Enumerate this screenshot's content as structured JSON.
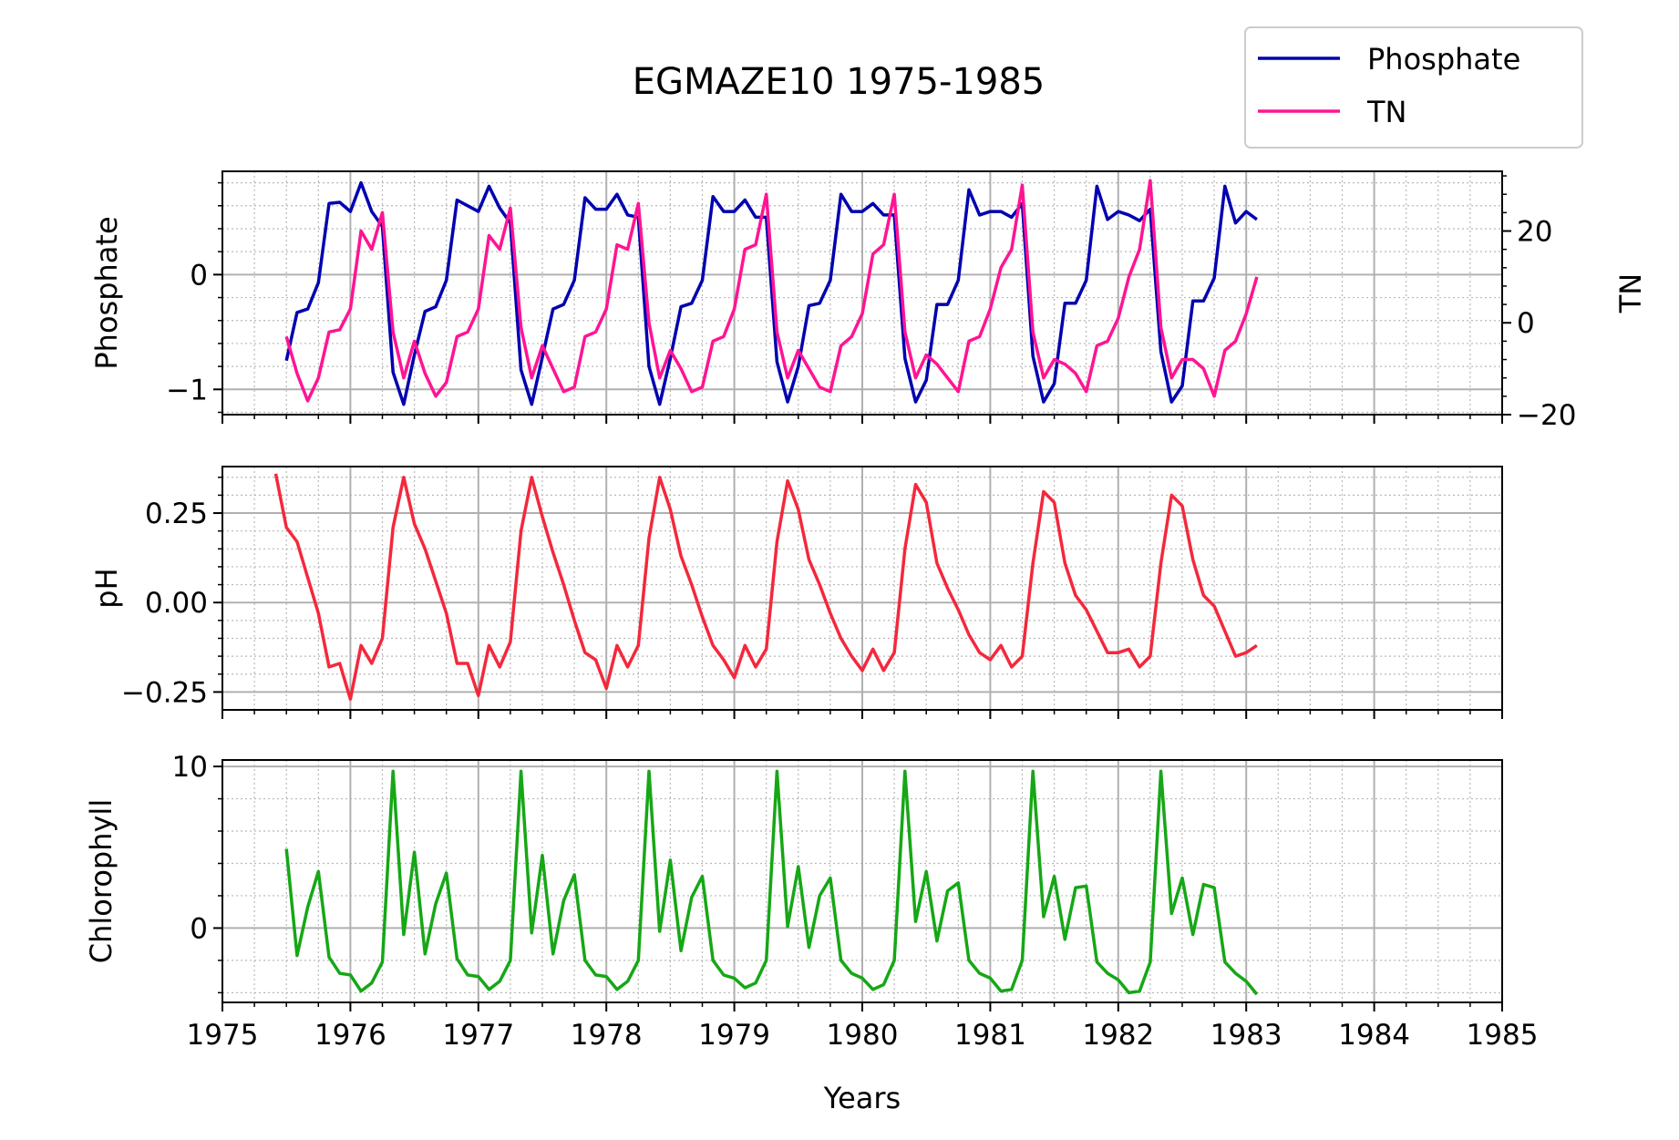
{
  "chart_data": {
    "type": "line",
    "title": "EGMAZE10 1975-1985",
    "xlabel": "Years",
    "xlim": [
      1975,
      1985
    ],
    "x_ticks": [
      "1975",
      "1976",
      "1977",
      "1978",
      "1979",
      "1980",
      "1981",
      "1982",
      "1983",
      "1984",
      "1985"
    ],
    "x_major_step": 1,
    "x_minor_step": 0.25,
    "legend": {
      "placement": "upper-right",
      "entries": [
        {
          "label": "Phosphate",
          "color": "#0000b0"
        },
        {
          "label": "TN",
          "color": "#ff1493"
        }
      ]
    },
    "panels": [
      {
        "name": "phosphate-tn",
        "ylabel": "Phosphate",
        "ylim": [
          -1.22,
          0.9
        ],
        "y_ticks": [
          {
            "value": -1,
            "label": "−1"
          },
          {
            "value": 0,
            "label": "0"
          }
        ],
        "y_minor_step": 0.2,
        "y2label": "TN",
        "y2lim": [
          -20,
          33
        ],
        "y2_ticks": [
          {
            "value": -20,
            "label": "−20"
          },
          {
            "value": 0,
            "label": "0"
          },
          {
            "value": 20,
            "label": "20"
          }
        ],
        "y2_minor_step": 4,
        "series": [
          {
            "name": "Phosphate",
            "axis": "left",
            "color": "#0000b0",
            "x": [
              1975.5,
              1975.583,
              1975.667,
              1975.75,
              1975.833,
              1975.917,
              1976.0,
              1976.083,
              1976.167,
              1976.25,
              1976.333,
              1976.417,
              1976.5,
              1976.583,
              1976.667,
              1976.75,
              1976.833,
              1976.917,
              1977.0,
              1977.083,
              1977.167,
              1977.25,
              1977.333,
              1977.417,
              1977.5,
              1977.583,
              1977.667,
              1977.75,
              1977.833,
              1977.917,
              1978.0,
              1978.083,
              1978.167,
              1978.25,
              1978.333,
              1978.417,
              1978.5,
              1978.583,
              1978.667,
              1978.75,
              1978.833,
              1978.917,
              1979.0,
              1979.083,
              1979.167,
              1979.25,
              1979.333,
              1979.417,
              1979.5,
              1979.583,
              1979.667,
              1979.75,
              1979.833,
              1979.917,
              1980.0,
              1980.083,
              1980.167,
              1980.25,
              1980.333,
              1980.417,
              1980.5,
              1980.583,
              1980.667,
              1980.75,
              1980.833,
              1980.917,
              1981.0,
              1981.083,
              1981.167,
              1981.25,
              1981.333,
              1981.417,
              1981.5,
              1981.583,
              1981.667,
              1981.75,
              1981.833,
              1981.917,
              1982.0,
              1982.083,
              1982.167,
              1982.25,
              1982.333,
              1982.417,
              1982.5,
              1982.583,
              1982.667,
              1982.75,
              1982.833,
              1982.917,
              1983.0,
              1983.083
            ],
            "values": [
              -0.75,
              -0.33,
              -0.3,
              -0.07,
              0.62,
              0.63,
              0.55,
              0.8,
              0.55,
              0.42,
              -0.85,
              -1.13,
              -0.7,
              -0.32,
              -0.28,
              -0.05,
              0.65,
              0.6,
              0.55,
              0.77,
              0.58,
              0.45,
              -0.83,
              -1.13,
              -0.72,
              -0.3,
              -0.26,
              -0.05,
              0.67,
              0.57,
              0.57,
              0.7,
              0.52,
              0.5,
              -0.8,
              -1.13,
              -0.73,
              -0.28,
              -0.25,
              -0.05,
              0.68,
              0.55,
              0.55,
              0.65,
              0.5,
              0.5,
              -0.76,
              -1.11,
              -0.8,
              -0.27,
              -0.25,
              -0.05,
              0.7,
              0.55,
              0.55,
              0.62,
              0.52,
              0.52,
              -0.73,
              -1.11,
              -0.92,
              -0.26,
              -0.26,
              -0.05,
              0.74,
              0.52,
              0.55,
              0.55,
              0.5,
              0.62,
              -0.71,
              -1.11,
              -0.95,
              -0.25,
              -0.25,
              -0.05,
              0.77,
              0.48,
              0.55,
              0.52,
              0.47,
              0.57,
              -0.67,
              -1.11,
              -0.97,
              -0.23,
              -0.23,
              -0.03,
              0.77,
              0.45,
              0.55,
              0.48
            ]
          },
          {
            "name": "TN",
            "axis": "right",
            "color": "#ff1493",
            "x": [
              1975.5,
              1975.583,
              1975.667,
              1975.75,
              1975.833,
              1975.917,
              1976.0,
              1976.083,
              1976.167,
              1976.25,
              1976.333,
              1976.417,
              1976.5,
              1976.583,
              1976.667,
              1976.75,
              1976.833,
              1976.917,
              1977.0,
              1977.083,
              1977.167,
              1977.25,
              1977.333,
              1977.417,
              1977.5,
              1977.583,
              1977.667,
              1977.75,
              1977.833,
              1977.917,
              1978.0,
              1978.083,
              1978.167,
              1978.25,
              1978.333,
              1978.417,
              1978.5,
              1978.583,
              1978.667,
              1978.75,
              1978.833,
              1978.917,
              1979.0,
              1979.083,
              1979.167,
              1979.25,
              1979.333,
              1979.417,
              1979.5,
              1979.583,
              1979.667,
              1979.75,
              1979.833,
              1979.917,
              1980.0,
              1980.083,
              1980.167,
              1980.25,
              1980.333,
              1980.417,
              1980.5,
              1980.583,
              1980.667,
              1980.75,
              1980.833,
              1980.917,
              1981.0,
              1981.083,
              1981.167,
              1981.25,
              1981.333,
              1981.417,
              1981.5,
              1981.583,
              1981.667,
              1981.75,
              1981.833,
              1981.917,
              1982.0,
              1982.083,
              1982.167,
              1982.25,
              1982.333,
              1982.417,
              1982.5,
              1982.583,
              1982.667,
              1982.75,
              1982.833,
              1982.917,
              1983.0,
              1983.083
            ],
            "values": [
              -3,
              -11,
              -17,
              -12,
              -2,
              -1.5,
              3,
              20,
              16,
              24,
              -2,
              -12,
              -4,
              -11,
              -16,
              -13,
              -3,
              -2,
              3,
              19,
              16,
              25,
              -1,
              -12,
              -5,
              -10,
              -15,
              -14,
              -3,
              -2,
              3,
              17,
              16,
              26,
              0,
              -12,
              -6,
              -10,
              -15,
              -14,
              -4,
              -3,
              3,
              16,
              17,
              28,
              -2,
              -12,
              -6,
              -10,
              -14,
              -15,
              -5,
              -3,
              2,
              15,
              17,
              28,
              -2,
              -12,
              -7,
              -9,
              -12,
              -15,
              -4,
              -3,
              3,
              12,
              16,
              30,
              -2,
              -12,
              -8,
              -9,
              -11,
              -15,
              -5,
              -4,
              1,
              10,
              16,
              31,
              -1,
              -12,
              -8,
              -8,
              -10,
              -16,
              -6,
              -4,
              2,
              10
            ]
          }
        ]
      },
      {
        "name": "ph",
        "ylabel": "pH",
        "ylim": [
          -0.3,
          0.38
        ],
        "y_ticks": [
          {
            "value": -0.25,
            "label": "−0.25"
          },
          {
            "value": 0,
            "label": "0.00"
          },
          {
            "value": 0.25,
            "label": "0.25"
          }
        ],
        "y_minor_step": 0.05,
        "series": [
          {
            "name": "pH",
            "axis": "left",
            "color": "#f4283c",
            "x": [
              1975.417,
              1975.5,
              1975.583,
              1975.667,
              1975.75,
              1975.833,
              1975.917,
              1976.0,
              1976.083,
              1976.167,
              1976.25,
              1976.333,
              1976.417,
              1976.5,
              1976.583,
              1976.667,
              1976.75,
              1976.833,
              1976.917,
              1977.0,
              1977.083,
              1977.167,
              1977.25,
              1977.333,
              1977.417,
              1977.5,
              1977.583,
              1977.667,
              1977.75,
              1977.833,
              1977.917,
              1978.0,
              1978.083,
              1978.167,
              1978.25,
              1978.333,
              1978.417,
              1978.5,
              1978.583,
              1978.667,
              1978.75,
              1978.833,
              1978.917,
              1979.0,
              1979.083,
              1979.167,
              1979.25,
              1979.333,
              1979.417,
              1979.5,
              1979.583,
              1979.667,
              1979.75,
              1979.833,
              1979.917,
              1980.0,
              1980.083,
              1980.167,
              1980.25,
              1980.333,
              1980.417,
              1980.5,
              1980.583,
              1980.667,
              1980.75,
              1980.833,
              1980.917,
              1981.0,
              1981.083,
              1981.167,
              1981.25,
              1981.333,
              1981.417,
              1981.5,
              1981.583,
              1981.667,
              1981.75,
              1981.833,
              1981.917,
              1982.0,
              1982.083,
              1982.167,
              1982.25,
              1982.333,
              1982.417,
              1982.5,
              1982.583,
              1982.667,
              1982.75,
              1982.833,
              1982.917,
              1983.0,
              1983.083
            ],
            "values": [
              0.36,
              0.21,
              0.17,
              0.07,
              -0.03,
              -0.18,
              -0.17,
              -0.27,
              -0.12,
              -0.17,
              -0.1,
              0.21,
              0.35,
              0.22,
              0.15,
              0.06,
              -0.03,
              -0.17,
              -0.17,
              -0.26,
              -0.12,
              -0.18,
              -0.11,
              0.2,
              0.35,
              0.24,
              0.14,
              0.05,
              -0.05,
              -0.14,
              -0.16,
              -0.24,
              -0.12,
              -0.18,
              -0.12,
              0.18,
              0.35,
              0.26,
              0.13,
              0.05,
              -0.04,
              -0.12,
              -0.16,
              -0.21,
              -0.12,
              -0.18,
              -0.13,
              0.17,
              0.34,
              0.26,
              0.12,
              0.05,
              -0.03,
              -0.1,
              -0.15,
              -0.19,
              -0.13,
              -0.19,
              -0.14,
              0.15,
              0.33,
              0.28,
              0.11,
              0.04,
              -0.02,
              -0.09,
              -0.14,
              -0.16,
              -0.12,
              -0.18,
              -0.15,
              0.11,
              0.31,
              0.28,
              0.11,
              0.02,
              -0.02,
              -0.08,
              -0.14,
              -0.14,
              -0.13,
              -0.18,
              -0.15,
              0.11,
              0.3,
              0.27,
              0.12,
              0.02,
              -0.01,
              -0.08,
              -0.15,
              -0.14,
              -0.12
            ]
          }
        ]
      },
      {
        "name": "chlorophyll",
        "ylabel": "Chlorophyll",
        "ylim": [
          -4.6,
          10.4
        ],
        "y_ticks": [
          {
            "value": 0,
            "label": "0"
          },
          {
            "value": 10,
            "label": "10"
          }
        ],
        "y_minor_step": 2,
        "series": [
          {
            "name": "Chlorophyll",
            "axis": "left",
            "color": "#16a716",
            "x": [
              1975.5,
              1975.583,
              1975.667,
              1975.75,
              1975.833,
              1975.917,
              1976.0,
              1976.083,
              1976.167,
              1976.25,
              1976.333,
              1976.417,
              1976.5,
              1976.583,
              1976.667,
              1976.75,
              1976.833,
              1976.917,
              1977.0,
              1977.083,
              1977.167,
              1977.25,
              1977.333,
              1977.417,
              1977.5,
              1977.583,
              1977.667,
              1977.75,
              1977.833,
              1977.917,
              1978.0,
              1978.083,
              1978.167,
              1978.25,
              1978.333,
              1978.417,
              1978.5,
              1978.583,
              1978.667,
              1978.75,
              1978.833,
              1978.917,
              1979.0,
              1979.083,
              1979.167,
              1979.25,
              1979.333,
              1979.417,
              1979.5,
              1979.583,
              1979.667,
              1979.75,
              1979.833,
              1979.917,
              1980.0,
              1980.083,
              1980.167,
              1980.25,
              1980.333,
              1980.417,
              1980.5,
              1980.583,
              1980.667,
              1980.75,
              1980.833,
              1980.917,
              1981.0,
              1981.083,
              1981.167,
              1981.25,
              1981.333,
              1981.417,
              1981.5,
              1981.583,
              1981.667,
              1981.75,
              1981.833,
              1981.917,
              1982.0,
              1982.083,
              1982.167,
              1982.25,
              1982.333,
              1982.417,
              1982.5,
              1982.583,
              1982.667,
              1982.75,
              1982.833,
              1982.917,
              1983.0,
              1983.083
            ],
            "values": [
              4.9,
              -1.7,
              1.3,
              3.5,
              -1.8,
              -2.8,
              -2.9,
              -3.9,
              -3.4,
              -2.1,
              9.7,
              -0.4,
              4.7,
              -1.6,
              1.5,
              3.4,
              -1.9,
              -2.9,
              -3.0,
              -3.8,
              -3.3,
              -2.0,
              9.7,
              -0.3,
              4.5,
              -1.6,
              1.7,
              3.3,
              -2.0,
              -2.9,
              -3.0,
              -3.8,
              -3.3,
              -2.0,
              9.7,
              -0.2,
              4.2,
              -1.4,
              1.9,
              3.2,
              -2.0,
              -2.9,
              -3.1,
              -3.7,
              -3.4,
              -2.0,
              9.7,
              0.1,
              3.8,
              -1.2,
              2.0,
              3.1,
              -2.0,
              -2.8,
              -3.1,
              -3.8,
              -3.5,
              -2.0,
              9.7,
              0.4,
              3.5,
              -0.8,
              2.3,
              2.8,
              -2.0,
              -2.8,
              -3.1,
              -3.9,
              -3.8,
              -2.0,
              9.7,
              0.7,
              3.2,
              -0.7,
              2.5,
              2.6,
              -2.1,
              -2.8,
              -3.2,
              -4.0,
              -3.9,
              -2.1,
              9.7,
              0.9,
              3.1,
              -0.4,
              2.7,
              2.5,
              -2.1,
              -2.8,
              -3.3,
              -4.1
            ]
          }
        ]
      }
    ]
  }
}
